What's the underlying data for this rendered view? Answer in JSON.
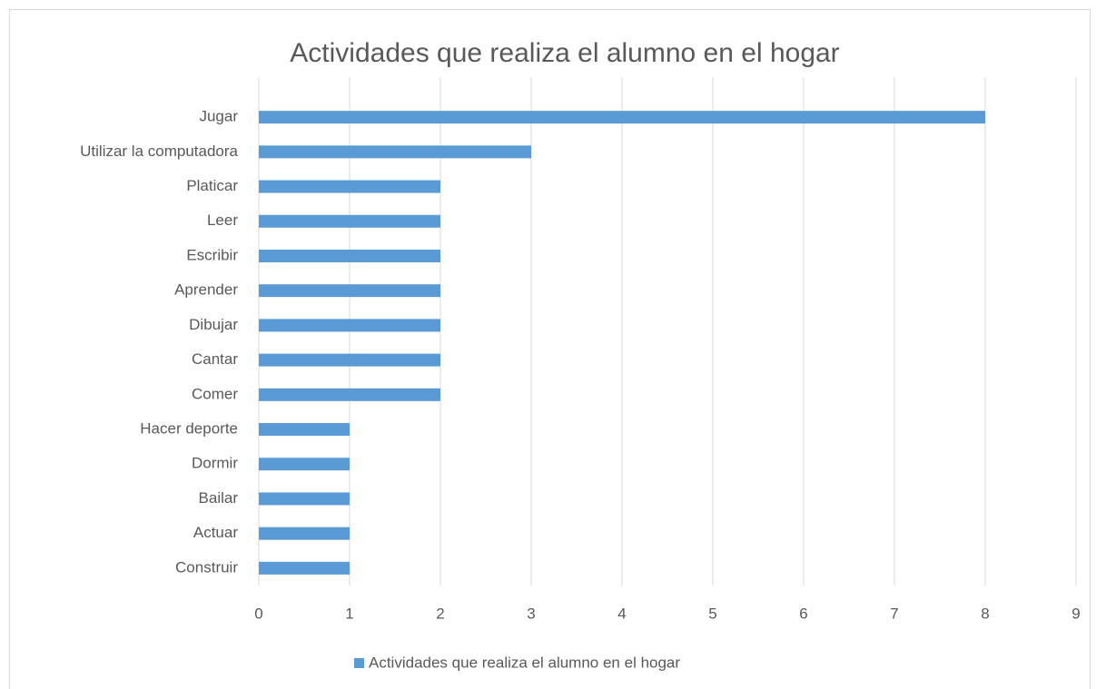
{
  "chart_data": {
    "type": "bar",
    "orientation": "horizontal",
    "title": "Actividades que realiza el alumno en el hogar",
    "categories": [
      "Jugar",
      "Utilizar la computadora",
      "Platicar",
      "Leer",
      "Escribir",
      "Aprender",
      "Dibujar",
      "Cantar",
      "Comer",
      "Hacer deporte",
      "Dormir",
      "Bailar",
      "Actuar",
      "Construir"
    ],
    "series": [
      {
        "name": "Actividades que realiza el alumno en el hogar",
        "color": "#5b9bd5",
        "values": [
          8,
          3,
          2,
          2,
          2,
          2,
          2,
          2,
          2,
          1,
          1,
          1,
          1,
          1
        ]
      }
    ],
    "xlim": [
      0,
      9
    ],
    "xticks": [
      0,
      1,
      2,
      3,
      4,
      5,
      6,
      7,
      8,
      9
    ],
    "grid": true,
    "legend": "bottom"
  }
}
